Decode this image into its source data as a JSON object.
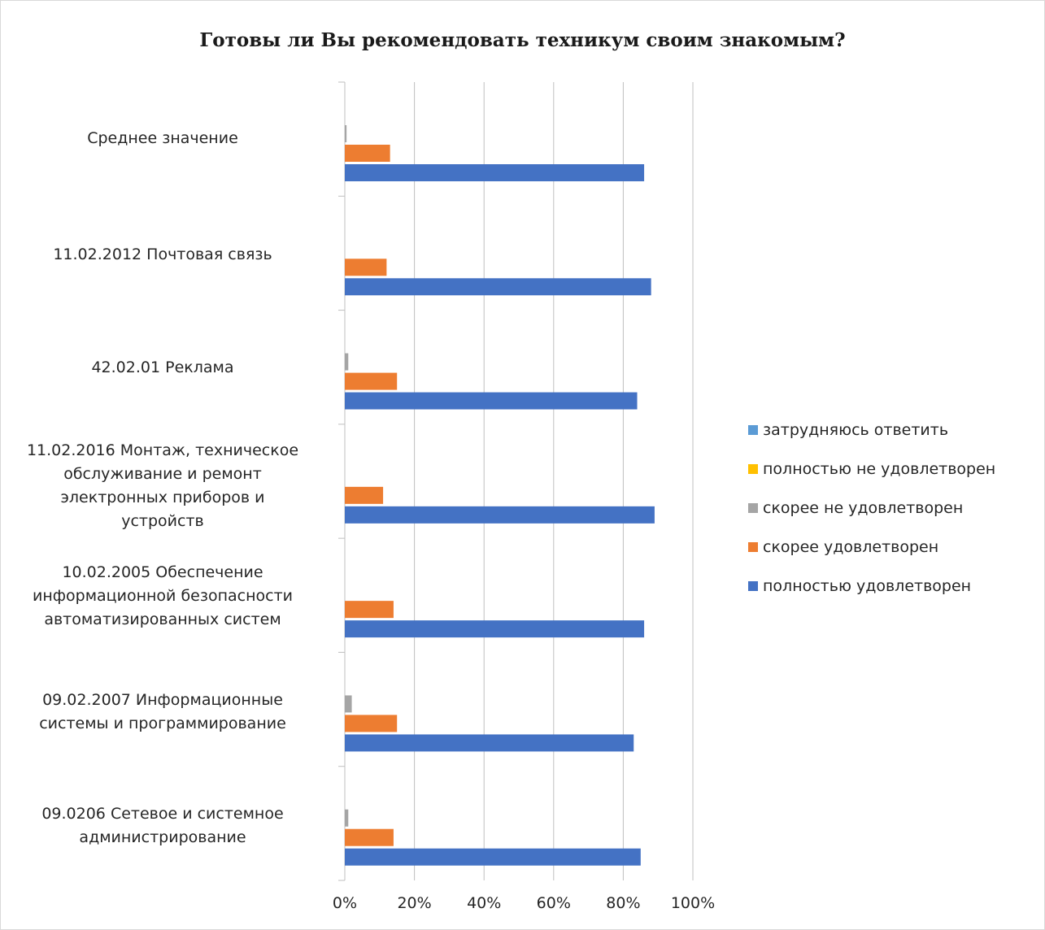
{
  "chart_data": {
    "type": "bar",
    "orientation": "horizontal",
    "title": "Готовы ли Вы рекомендовать техникум своим знакомым?",
    "xlabel": "",
    "ylabel": "",
    "xlim": [
      0,
      1
    ],
    "x_ticks": [
      "0%",
      "20%",
      "40%",
      "60%",
      "80%",
      "100%"
    ],
    "grid": "vertical",
    "legend_position": "right",
    "categories": [
      [
        "Среднее значение"
      ],
      [
        "11.02.2012 Почтовая связь"
      ],
      [
        "42.02.01 Реклама"
      ],
      [
        "11.02.2016 Монтаж, техническое",
        "обслуживание и ремонт",
        "электронных приборов и",
        "устройств"
      ],
      [
        "10.02.2005 Обеспечение",
        "информационной безопасности",
        "автоматизированных систем"
      ],
      [
        "09.02.2007 Информационные",
        "системы и программирование"
      ],
      [
        "09.0206 Сетевое и системное",
        "администрирование"
      ]
    ],
    "series": [
      {
        "name": "затрудняюсь ответить",
        "color": "#5B9BD5",
        "values": [
          0,
          0,
          0,
          0,
          0,
          0,
          0
        ]
      },
      {
        "name": "полностью не удовлетворен",
        "color": "#FFC000",
        "values": [
          0,
          0,
          0,
          0,
          0,
          0,
          0
        ]
      },
      {
        "name": "скорее не удовлетворен",
        "color": "#A5A5A5",
        "values": [
          0.005,
          0,
          0.01,
          0,
          0,
          0.02,
          0.01
        ]
      },
      {
        "name": "скорее удовлетворен",
        "color": "#ED7D31",
        "values": [
          0.13,
          0.12,
          0.15,
          0.11,
          0.14,
          0.15,
          0.14
        ]
      },
      {
        "name": "полностью удовлетворен",
        "color": "#4472C4",
        "values": [
          0.86,
          0.88,
          0.84,
          0.89,
          0.86,
          0.83,
          0.85
        ]
      }
    ]
  }
}
